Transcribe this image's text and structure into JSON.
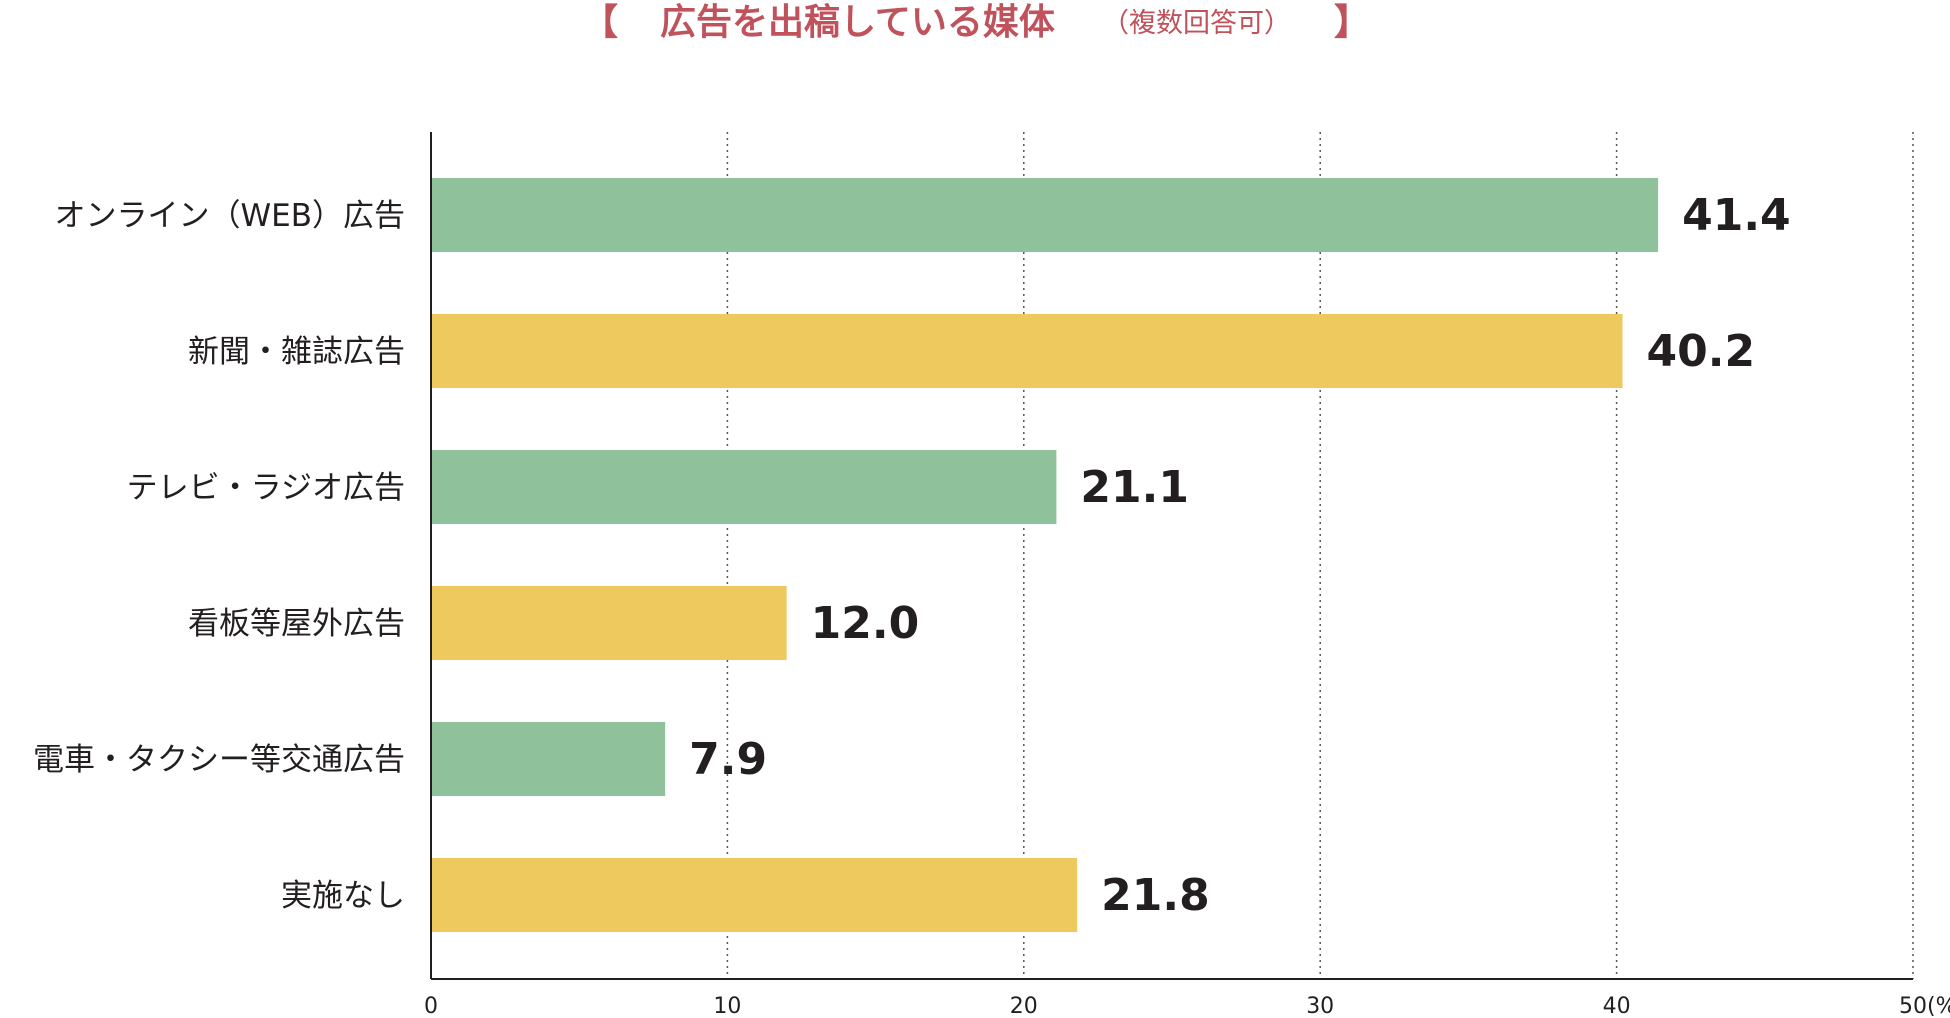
{
  "chart_data": {
    "type": "bar",
    "orientation": "horizontal",
    "title": "広告を出稿している媒体",
    "title_note": "（複数回答可）",
    "title_brackets": [
      "【",
      "】"
    ],
    "categories": [
      "オンライン（WEB）広告",
      "新聞・雑誌広告",
      "テレビ・ラジオ広告",
      "看板等屋外広告",
      "電車・タクシー等交通広告",
      "実施なし"
    ],
    "values": [
      41.4,
      40.2,
      21.1,
      12.0,
      7.9,
      21.8
    ],
    "value_labels": [
      "41.4",
      "40.2",
      "21.1",
      "12.0",
      "7.9",
      "21.8"
    ],
    "bar_colors": [
      "#8fc29b",
      "#edc95e",
      "#8fc29b",
      "#edc95e",
      "#8fc29b",
      "#edc95e"
    ],
    "xlim": [
      0,
      50
    ],
    "xticks": [
      0,
      10,
      20,
      30,
      40,
      50
    ],
    "xtick_labels": [
      "0",
      "10",
      "20",
      "30",
      "40",
      "50"
    ],
    "unit_label": "(%)",
    "grid": "vertical dotted",
    "colors": {
      "title": "#c0525c",
      "green": "#8fc29b",
      "yellow": "#edc95e",
      "text": "#231f20"
    }
  }
}
